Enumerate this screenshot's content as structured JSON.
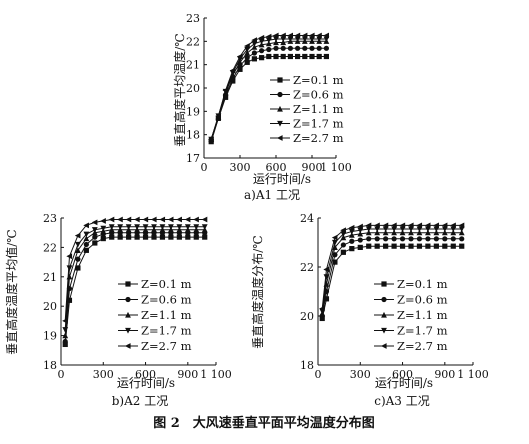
{
  "figure_caption": "图 2　大风速垂直平面平均温度分布图",
  "chart_data": [
    {
      "type": "line",
      "caption": "a)A1 工况",
      "xlabel": "运行时间/s",
      "ylabel": "垂直高度平均温度/℃",
      "xlim": [
        0,
        1100
      ],
      "ylim": [
        17,
        23
      ],
      "x_ticks": [
        0,
        300,
        600,
        900,
        1100
      ],
      "x_tick_labels": [
        "0",
        "300",
        "600",
        "900",
        "1 100"
      ],
      "y_ticks": [
        17,
        18,
        19,
        20,
        21,
        22,
        23
      ],
      "x": [
        60,
        120,
        180,
        240,
        300,
        360,
        420,
        480,
        540,
        600,
        660,
        720,
        780,
        840,
        900,
        960,
        1020
      ],
      "legend_position": "right",
      "series": [
        {
          "name": "Z=0.1 m",
          "marker": "square",
          "values": [
            17.7,
            18.7,
            19.6,
            20.3,
            20.8,
            21.1,
            21.25,
            21.3,
            21.35,
            21.35,
            21.35,
            21.35,
            21.35,
            21.35,
            21.35,
            21.35,
            21.35
          ]
        },
        {
          "name": "Z=0.6 m",
          "marker": "circle",
          "values": [
            17.8,
            18.7,
            19.7,
            20.4,
            20.95,
            21.3,
            21.5,
            21.6,
            21.65,
            21.7,
            21.7,
            21.7,
            21.7,
            21.7,
            21.7,
            21.7,
            21.7
          ]
        },
        {
          "name": "Z=1.1 m",
          "marker": "triangle",
          "values": [
            17.8,
            18.75,
            19.8,
            20.55,
            21.1,
            21.5,
            21.75,
            21.85,
            21.9,
            21.95,
            21.95,
            22.0,
            22.0,
            22.0,
            22.0,
            22.0,
            22.0
          ]
        },
        {
          "name": "Z=1.7 m",
          "marker": "tri-down",
          "values": [
            17.8,
            18.8,
            19.85,
            20.65,
            21.25,
            21.65,
            21.9,
            22.0,
            22.05,
            22.1,
            22.1,
            22.1,
            22.1,
            22.1,
            22.1,
            22.1,
            22.1
          ]
        },
        {
          "name": "Z=2.7 m",
          "marker": "tri-left",
          "values": [
            17.8,
            18.8,
            19.9,
            20.75,
            21.35,
            21.8,
            22.05,
            22.15,
            22.2,
            22.25,
            22.25,
            22.25,
            22.25,
            22.25,
            22.25,
            22.25,
            22.25
          ]
        }
      ]
    },
    {
      "type": "line",
      "caption": "b)A2 工况",
      "xlabel": "运行时间/s",
      "ylabel": "垂直高度温度平均值/℃",
      "xlim": [
        0,
        1100
      ],
      "ylim": [
        18,
        23
      ],
      "x_ticks": [
        0,
        300,
        600,
        900,
        1100
      ],
      "x_tick_labels": [
        "0",
        "300",
        "600",
        "900",
        "1 100"
      ],
      "y_ticks": [
        18,
        19,
        20,
        21,
        22,
        23
      ],
      "x": [
        30,
        60,
        120,
        180,
        240,
        300,
        360,
        420,
        480,
        540,
        600,
        660,
        720,
        780,
        840,
        900,
        960,
        1020
      ],
      "legend_position": "right",
      "series": [
        {
          "name": "Z=0.1 m",
          "marker": "square",
          "values": [
            18.7,
            20.2,
            21.3,
            21.9,
            22.15,
            22.3,
            22.35,
            22.35,
            22.35,
            22.35,
            22.35,
            22.35,
            22.35,
            22.35,
            22.35,
            22.35,
            22.35,
            22.35
          ]
        },
        {
          "name": "Z=0.6 m",
          "marker": "circle",
          "values": [
            18.8,
            20.6,
            21.6,
            22.1,
            22.35,
            22.45,
            22.5,
            22.5,
            22.5,
            22.5,
            22.5,
            22.5,
            22.5,
            22.5,
            22.5,
            22.5,
            22.5,
            22.5
          ]
        },
        {
          "name": "Z=1.1 m",
          "marker": "triangle",
          "values": [
            19.0,
            21.0,
            21.9,
            22.3,
            22.5,
            22.55,
            22.6,
            22.6,
            22.6,
            22.6,
            22.6,
            22.6,
            22.6,
            22.6,
            22.6,
            22.6,
            22.6,
            22.6
          ]
        },
        {
          "name": "Z=1.7 m",
          "marker": "tri-down",
          "values": [
            19.2,
            21.3,
            22.1,
            22.45,
            22.6,
            22.65,
            22.7,
            22.7,
            22.7,
            22.7,
            22.7,
            22.7,
            22.7,
            22.7,
            22.7,
            22.7,
            22.7,
            22.7
          ]
        },
        {
          "name": "Z=2.7 m",
          "marker": "tri-left",
          "values": [
            19.5,
            21.7,
            22.4,
            22.75,
            22.85,
            22.9,
            22.95,
            22.95,
            22.95,
            22.95,
            22.95,
            22.95,
            22.95,
            22.95,
            22.95,
            22.95,
            22.95,
            22.95
          ]
        }
      ]
    },
    {
      "type": "line",
      "caption": "c)A3 工况",
      "xlabel": "运行时间/s",
      "ylabel": "垂直高度温度分布/℃",
      "xlim": [
        0,
        1100
      ],
      "ylim": [
        18,
        24
      ],
      "x_ticks": [
        0,
        300,
        600,
        900,
        1100
      ],
      "x_tick_labels": [
        "0",
        "300",
        "600",
        "900",
        "1 100"
      ],
      "y_ticks": [
        18,
        20,
        22,
        24
      ],
      "x": [
        30,
        60,
        120,
        180,
        240,
        300,
        360,
        420,
        480,
        540,
        600,
        660,
        720,
        780,
        840,
        900,
        960,
        1020
      ],
      "legend_position": "right",
      "series": [
        {
          "name": "Z=0.1 m",
          "marker": "square",
          "values": [
            19.9,
            20.7,
            22.2,
            22.6,
            22.75,
            22.8,
            22.85,
            22.85,
            22.85,
            22.85,
            22.85,
            22.85,
            22.85,
            22.85,
            22.85,
            22.85,
            22.85,
            22.85
          ]
        },
        {
          "name": "Z=0.6 m",
          "marker": "circle",
          "values": [
            20.0,
            21.0,
            22.5,
            22.9,
            23.05,
            23.1,
            23.15,
            23.15,
            23.15,
            23.15,
            23.15,
            23.15,
            23.15,
            23.15,
            23.15,
            23.15,
            23.15,
            23.15
          ]
        },
        {
          "name": "Z=1.1 m",
          "marker": "triangle",
          "values": [
            20.1,
            21.3,
            22.8,
            23.2,
            23.3,
            23.35,
            23.4,
            23.4,
            23.4,
            23.4,
            23.4,
            23.4,
            23.4,
            23.4,
            23.4,
            23.4,
            23.4,
            23.4
          ]
        },
        {
          "name": "Z=1.7 m",
          "marker": "tri-down",
          "values": [
            20.2,
            21.6,
            23.0,
            23.35,
            23.45,
            23.5,
            23.55,
            23.55,
            23.55,
            23.55,
            23.55,
            23.55,
            23.55,
            23.55,
            23.55,
            23.55,
            23.55,
            23.55
          ]
        },
        {
          "name": "Z=2.7 m",
          "marker": "tri-left",
          "values": [
            20.3,
            21.9,
            23.2,
            23.5,
            23.6,
            23.65,
            23.7,
            23.7,
            23.7,
            23.7,
            23.7,
            23.7,
            23.7,
            23.7,
            23.7,
            23.7,
            23.7,
            23.7
          ]
        }
      ]
    }
  ]
}
